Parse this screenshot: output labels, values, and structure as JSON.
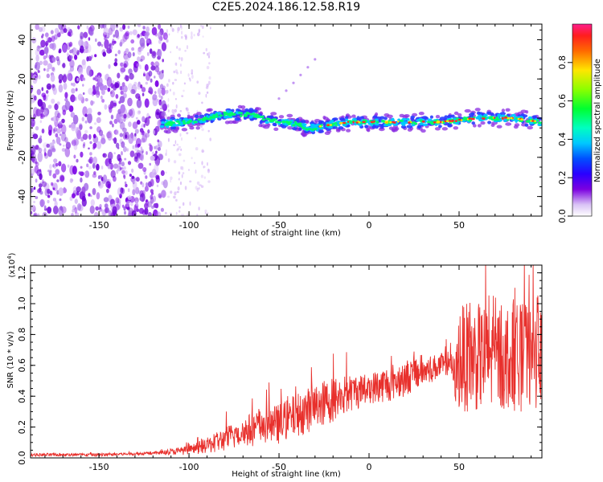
{
  "title": "C2E5.2024.186.12.58.R19",
  "chart_data": [
    {
      "type": "heatmap",
      "xlabel": "Height of straight line (km)",
      "ylabel": "Frequency (Hz)",
      "xlim": [
        -188,
        96
      ],
      "ylim": [
        -50,
        48
      ],
      "x_ticks": [
        -150,
        -100,
        -50,
        0,
        50
      ],
      "y_ticks": [
        -40,
        -20,
        0,
        20,
        40
      ],
      "colorbar": {
        "label": "Normalized spectral amplitude",
        "range": [
          0,
          1
        ],
        "ticks": [
          "0.0",
          "0.2",
          "0.4",
          "0.6",
          "0.8"
        ]
      },
      "ridge": {
        "x": [
          -115,
          -100,
          -90,
          -80,
          -70,
          -65,
          -60,
          -50,
          -40,
          -35,
          -30,
          -20,
          -10,
          0,
          20,
          40,
          60,
          80,
          95
        ],
        "y": [
          -3,
          -2,
          0,
          2,
          2,
          2,
          0,
          -2,
          -3,
          -5,
          -5,
          -3,
          -2,
          -2,
          -2,
          -2,
          0,
          0,
          -2
        ]
      }
    },
    {
      "type": "line",
      "xlabel": "Height of straight line (km)",
      "ylabel": "SNR (10 * v/v)",
      "y_scale_label": "(x10",
      "y_scale_exp": "4",
      "y_scale_close": ")",
      "xlim": [
        -188,
        96
      ],
      "ylim": [
        0,
        1.25
      ],
      "x_ticks": [
        -150,
        -100,
        -50,
        0,
        50
      ],
      "y_ticks": [
        "0.0",
        "0.2",
        "0.4",
        "0.6",
        "0.8",
        "1.0",
        "1.2"
      ],
      "series": [
        {
          "color": "#e8302c",
          "envelope_x": [
            -188,
            -150,
            -120,
            -100,
            -90,
            -80,
            -70,
            -60,
            -50,
            -40,
            -30,
            -20,
            -10,
            0,
            10,
            20,
            30,
            40,
            45,
            48,
            50,
            55,
            60,
            70,
            80,
            90,
            96
          ],
          "envelope_y": [
            0.02,
            0.02,
            0.03,
            0.05,
            0.08,
            0.12,
            0.17,
            0.2,
            0.22,
            0.28,
            0.33,
            0.38,
            0.42,
            0.45,
            0.48,
            0.52,
            0.56,
            0.6,
            0.62,
            0.5,
            0.65,
            0.65,
            0.65,
            0.65,
            0.65,
            0.65,
            0.65
          ],
          "amplitude_y": [
            0.01,
            0.01,
            0.01,
            0.03,
            0.05,
            0.08,
            0.1,
            0.12,
            0.13,
            0.14,
            0.15,
            0.15,
            0.12,
            0.1,
            0.12,
            0.12,
            0.1,
            0.08,
            0.08,
            0.15,
            0.35,
            0.35,
            0.35,
            0.35,
            0.35,
            0.35,
            0.3
          ]
        }
      ]
    }
  ]
}
